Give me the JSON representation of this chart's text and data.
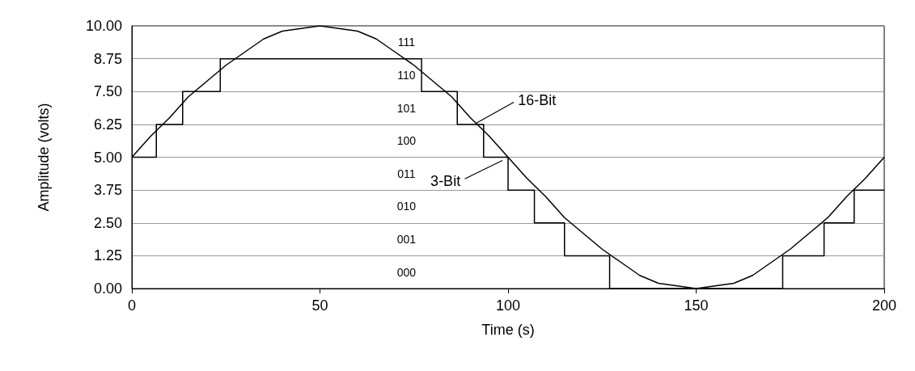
{
  "chart_data": {
    "type": "line",
    "xlabel": "Time (s)",
    "ylabel": "Amplitude (volts)",
    "xlim": [
      0,
      200
    ],
    "xticks": [
      0,
      50,
      100,
      150,
      200
    ],
    "ylim": [
      0,
      10
    ],
    "yticks": [
      {
        "value": 0,
        "label": "0.00"
      },
      {
        "value": 1.25,
        "label": "1.25"
      },
      {
        "value": 2.5,
        "label": "2.50"
      },
      {
        "value": 3.75,
        "label": "3.75"
      },
      {
        "value": 5,
        "label": "5.00"
      },
      {
        "value": 6.25,
        "label": "6.25"
      },
      {
        "value": 7.5,
        "label": "7.50"
      },
      {
        "value": 8.75,
        "label": "8.75"
      },
      {
        "value": 10,
        "label": "10.00"
      }
    ],
    "grid": "y",
    "legend": false,
    "marker": "none",
    "line_style": "solid",
    "series": [
      {
        "name": "16-Bit",
        "color": "#000000",
        "x": [
          0,
          5,
          10,
          15,
          20,
          25,
          30,
          35,
          40,
          45,
          50,
          55,
          60,
          65,
          70,
          75,
          80,
          85,
          90,
          95,
          100,
          105,
          110,
          115,
          120,
          125,
          130,
          135,
          140,
          145,
          150,
          155,
          160,
          165,
          170,
          175,
          180,
          185,
          190,
          195,
          200
        ],
        "values": [
          5,
          5.8,
          6.5,
          7.3,
          7.9,
          8.5,
          9.0,
          9.5,
          9.8,
          9.9,
          10,
          9.9,
          9.8,
          9.5,
          9.0,
          8.5,
          7.9,
          7.3,
          6.5,
          5.8,
          5,
          4.2,
          3.5,
          2.7,
          2.1,
          1.5,
          1.0,
          0.5,
          0.2,
          0.1,
          0,
          0.1,
          0.2,
          0.5,
          1.0,
          1.5,
          2.1,
          2.7,
          3.5,
          4.2,
          5
        ]
      },
      {
        "name": "3-Bit",
        "type": "step",
        "color": "#000000",
        "x": [
          0,
          6.5,
          13.5,
          23.5,
          77,
          86.5,
          93.5,
          100,
          107,
          115,
          127,
          173,
          184,
          192,
          200
        ],
        "values": [
          5,
          6.25,
          7.5,
          8.75,
          7.5,
          6.25,
          5,
          3.75,
          2.5,
          1.25,
          0,
          1.25,
          2.5,
          3.75,
          3.75
        ]
      }
    ],
    "annotations": [
      "111",
      "110",
      "101",
      "100",
      "011",
      "010",
      "001",
      "000"
    ]
  }
}
